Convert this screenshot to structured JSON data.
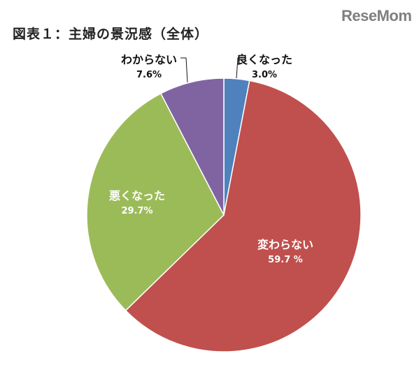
{
  "brand": {
    "logo_text": "ReseMom"
  },
  "chart_data": {
    "type": "pie",
    "title": "図表１：主婦の景況感（全体）",
    "slices": [
      {
        "label": "良くなった",
        "value_text": "3.0%",
        "value": 3.0,
        "color": "#4f81bd",
        "text_color": "#111111"
      },
      {
        "label": "変わらない",
        "value_text": "59.7 %",
        "value": 59.7,
        "color": "#c0504d",
        "text_color": "#ffffff"
      },
      {
        "label": "悪くなった",
        "value_text": "29.7%",
        "value": 29.7,
        "color": "#9bbb59",
        "text_color": "#ffffff"
      },
      {
        "label": "わからない",
        "value_text": "7.6%",
        "value": 7.6,
        "color": "#8064a2",
        "text_color": "#111111"
      }
    ]
  }
}
